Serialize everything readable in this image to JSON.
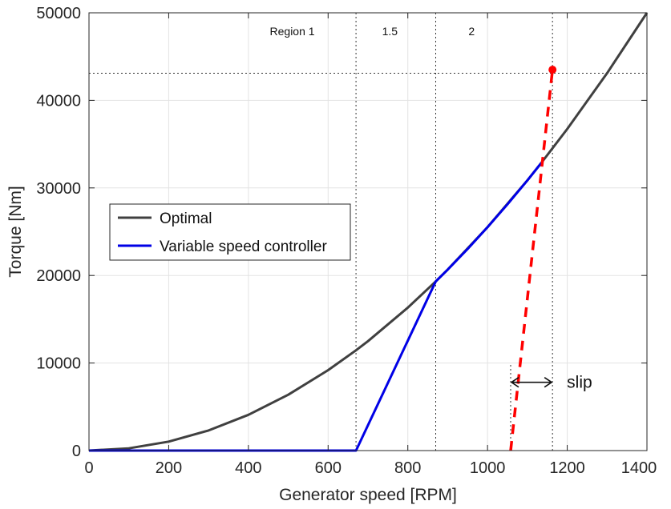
{
  "chart_data": {
    "type": "line",
    "xlabel": "Generator speed [RPM]",
    "ylabel": "Torque [Nm]",
    "xlim": [
      0,
      1400
    ],
    "ylim": [
      0,
      50000
    ],
    "xticks": [
      0,
      200,
      400,
      600,
      800,
      1000,
      1200,
      1400
    ],
    "yticks": [
      0,
      10000,
      20000,
      30000,
      40000,
      50000
    ],
    "grid": true,
    "legend_position": "center-left",
    "series": [
      {
        "name": "Optimal",
        "color": "#404040",
        "style": "solid",
        "curve": "quadratic",
        "x": [
          0,
          100,
          200,
          300,
          400,
          500,
          600,
          670,
          700,
          800,
          870,
          900,
          1000,
          1100,
          1135,
          1200,
          1300,
          1400
        ],
        "y": [
          0,
          255,
          1020,
          2296,
          4082,
          6378,
          9184,
          11454,
          12500,
          16327,
          19312,
          20663,
          25510,
          30867,
          32868,
          36735,
          43112,
          50000
        ]
      },
      {
        "name": "Variable speed controller",
        "color": "#0000e6",
        "style": "solid",
        "x": [
          0,
          670,
          870,
          900,
          950,
          1000,
          1050,
          1100,
          1135
        ],
        "y": [
          0,
          0,
          19312,
          20663,
          23023,
          25510,
          28125,
          30867,
          32868
        ]
      }
    ],
    "extra_lines": [
      {
        "label": "slip line",
        "color": "#ff0000",
        "style": "dashed",
        "x": [
          1058,
          1163
        ],
        "y": [
          0,
          43500
        ]
      }
    ],
    "marker": {
      "x": 1163,
      "y": 43500,
      "color": "#ff0000"
    },
    "reference_lines": {
      "vertical_dotted": [
        670,
        870,
        1163
      ],
      "horizontal_dotted": [
        43100
      ]
    },
    "regions": [
      {
        "label": "Region 1",
        "x": 510
      },
      {
        "label": "1.5",
        "x": 755
      },
      {
        "label": "2",
        "x": 960
      }
    ],
    "slip_annotation": {
      "label": "slip",
      "x_from": 1058,
      "x_to": 1163,
      "y": 7800,
      "guide_top_y": 10000
    }
  }
}
